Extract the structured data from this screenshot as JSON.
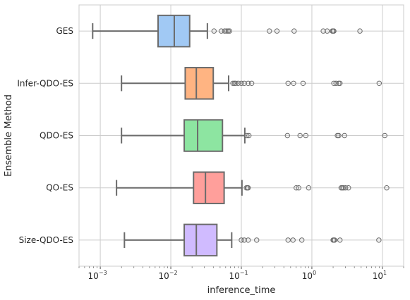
{
  "chart_data": {
    "type": "boxplot",
    "orientation": "horizontal",
    "xlabel": "inference_time",
    "ylabel": "Ensemble Method",
    "xscale": "log",
    "xlim": [
      0.0005,
      20
    ],
    "xticks": [
      {
        "value": 0.001,
        "base": "10",
        "exp": "−3"
      },
      {
        "value": 0.01,
        "base": "10",
        "exp": "−2"
      },
      {
        "value": 0.1,
        "base": "10",
        "exp": "−1"
      },
      {
        "value": 1,
        "base": "10",
        "exp": "0"
      },
      {
        "value": 10,
        "base": "10",
        "exp": "1"
      }
    ],
    "grid": true,
    "categories": [
      "GES",
      "Infer-QDO-ES",
      "QDO-ES",
      "QO-ES",
      "Size-QDO-ES"
    ],
    "colors": [
      "#a1c9f4",
      "#ffb482",
      "#8de5a1",
      "#ff9f9b",
      "#d0bbff"
    ],
    "line_color": "#6b6b6b",
    "series": [
      {
        "whisker_low": 0.00078,
        "q1": 0.0066,
        "median": 0.0112,
        "q3": 0.0185,
        "whisker_high": 0.033,
        "outliers": [
          0.041,
          0.052,
          0.058,
          0.062,
          0.065,
          0.068,
          0.25,
          0.32,
          0.56,
          1.45,
          1.65,
          1.95,
          2.0,
          2.05,
          4.8
        ]
      },
      {
        "whisker_low": 0.002,
        "q1": 0.016,
        "median": 0.023,
        "q3": 0.04,
        "whisker_high": 0.066,
        "outliers": [
          0.076,
          0.08,
          0.083,
          0.09,
          0.1,
          0.11,
          0.125,
          0.14,
          0.46,
          0.55,
          0.75,
          2.05,
          2.2,
          2.4,
          2.5,
          9.0
        ]
      },
      {
        "whisker_low": 0.002,
        "q1": 0.0155,
        "median": 0.024,
        "q3": 0.054,
        "whisker_high": 0.112,
        "outliers": [
          0.12,
          0.128,
          0.45,
          0.68,
          0.82,
          2.3,
          2.4,
          2.9,
          10.8
        ]
      },
      {
        "whisker_low": 0.0017,
        "q1": 0.021,
        "median": 0.031,
        "q3": 0.057,
        "whisker_high": 0.102,
        "outliers": [
          0.118,
          0.122,
          0.125,
          0.6,
          0.65,
          0.9,
          2.6,
          2.7,
          2.8,
          3.0,
          3.3,
          11.5
        ]
      },
      {
        "whisker_low": 0.0022,
        "q1": 0.0155,
        "median": 0.023,
        "q3": 0.045,
        "whisker_high": 0.073,
        "outliers": [
          0.1,
          0.11,
          0.125,
          0.165,
          0.46,
          0.54,
          0.72,
          2.0,
          2.05,
          2.1,
          2.5,
          8.9
        ]
      }
    ]
  }
}
